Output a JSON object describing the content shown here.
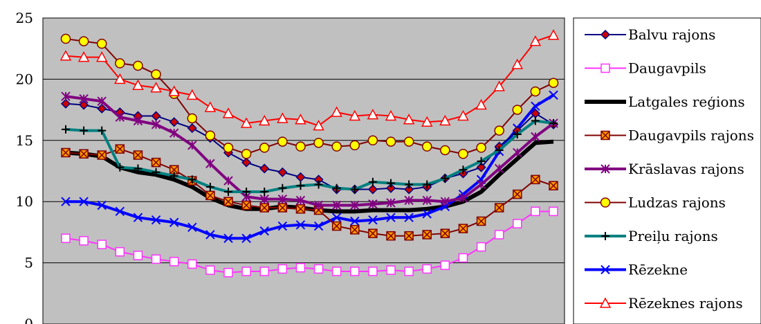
{
  "chart_data": {
    "type": "line",
    "title": "",
    "xlabel": "",
    "ylabel": "",
    "ylim": [
      0,
      25
    ],
    "yticks": [
      0,
      5,
      10,
      15,
      20,
      25
    ],
    "grid": true,
    "legend_position": "right",
    "x": [
      1,
      2,
      3,
      4,
      5,
      6,
      7,
      8,
      9,
      10,
      11,
      12,
      13,
      14,
      15,
      16,
      17,
      18,
      19,
      20,
      21,
      22,
      23,
      24,
      25,
      26,
      27,
      28
    ],
    "series": [
      {
        "name": "Balvu rajons",
        "color": "#000080",
        "marker": "diamond",
        "marker_fill": "#cc0000",
        "line_width": 2,
        "values": [
          18.0,
          17.9,
          17.6,
          17.3,
          17.0,
          17.0,
          16.5,
          16.0,
          15.2,
          14.0,
          13.2,
          12.7,
          12.4,
          12.0,
          11.8,
          11.0,
          11.0,
          11.0,
          11.1,
          11.0,
          11.2,
          11.9,
          12.3,
          12.8,
          14.5,
          15.8,
          17.2,
          16.3
        ]
      },
      {
        "name": "Daugavpils",
        "color": "#ff33ff",
        "marker": "square",
        "marker_fill": "#ffffff",
        "line_width": 2,
        "values": [
          7.0,
          6.8,
          6.5,
          5.9,
          5.6,
          5.3,
          5.1,
          4.9,
          4.4,
          4.2,
          4.3,
          4.3,
          4.5,
          4.6,
          4.5,
          4.3,
          4.3,
          4.3,
          4.4,
          4.3,
          4.5,
          4.8,
          5.4,
          6.3,
          7.3,
          8.2,
          9.2,
          9.2
        ]
      },
      {
        "name": "Latgales reģions",
        "color": "#000000",
        "marker": "none",
        "marker_fill": "",
        "line_width": 6,
        "values": [
          14.0,
          13.9,
          13.7,
          12.8,
          12.4,
          12.2,
          11.8,
          11.2,
          10.3,
          9.7,
          9.4,
          9.4,
          9.6,
          9.5,
          9.3,
          9.2,
          9.2,
          9.3,
          9.3,
          9.3,
          9.4,
          9.6,
          10.0,
          10.8,
          12.2,
          13.5,
          14.8,
          14.9
        ]
      },
      {
        "name": "Daugavpils rajons",
        "color": "#800000",
        "marker": "boxx",
        "marker_fill": "#ff9900",
        "line_width": 2,
        "values": [
          14.0,
          13.9,
          13.8,
          14.3,
          13.8,
          13.2,
          12.6,
          11.7,
          10.5,
          10.0,
          9.7,
          9.5,
          9.5,
          9.4,
          9.3,
          8.0,
          7.7,
          7.4,
          7.2,
          7.2,
          7.3,
          7.4,
          7.8,
          8.4,
          9.5,
          10.6,
          11.8,
          11.3
        ]
      },
      {
        "name": "Krāslavas rajons",
        "color": "#800080",
        "marker": "asterisk",
        "marker_fill": "",
        "line_width": 4,
        "values": [
          18.6,
          18.4,
          18.2,
          16.9,
          16.6,
          16.3,
          15.6,
          14.6,
          13.1,
          11.7,
          10.4,
          10.2,
          10.2,
          10.1,
          9.7,
          9.7,
          9.7,
          9.8,
          9.9,
          10.1,
          10.1,
          10.0,
          10.3,
          11.4,
          12.7,
          14.0,
          15.3,
          16.4
        ]
      },
      {
        "name": "Ludzas rajons",
        "color": "#800000",
        "marker": "circle",
        "marker_fill": "#ffff00",
        "line_width": 2,
        "values": [
          23.3,
          23.1,
          22.9,
          21.3,
          21.1,
          20.4,
          18.8,
          16.8,
          15.4,
          14.4,
          13.9,
          14.4,
          14.9,
          14.5,
          14.8,
          14.5,
          14.6,
          15.0,
          14.9,
          14.9,
          14.5,
          14.2,
          13.9,
          14.4,
          15.8,
          17.5,
          19.0,
          19.7
        ]
      },
      {
        "name": "Preiļu rajons",
        "color": "#008080",
        "marker": "plus",
        "marker_fill": "",
        "line_width": 4,
        "values": [
          15.9,
          15.8,
          15.8,
          12.8,
          12.7,
          12.4,
          12.1,
          11.8,
          11.2,
          10.8,
          10.8,
          10.8,
          11.1,
          11.3,
          11.4,
          11.1,
          11.0,
          11.6,
          11.5,
          11.4,
          11.4,
          11.9,
          12.6,
          13.3,
          14.2,
          15.5,
          16.6,
          16.4
        ]
      },
      {
        "name": "Rēzekne",
        "color": "#0000ff",
        "marker": "x",
        "marker_fill": "",
        "line_width": 4,
        "values": [
          10.0,
          10.0,
          9.7,
          9.2,
          8.7,
          8.5,
          8.3,
          7.9,
          7.3,
          7.0,
          7.0,
          7.6,
          8.0,
          8.1,
          8.0,
          8.7,
          8.4,
          8.5,
          8.7,
          8.7,
          9.0,
          9.6,
          10.6,
          11.8,
          14.1,
          16.0,
          17.8,
          18.7
        ]
      },
      {
        "name": "Rēzeknes rajons",
        "color": "#ff0000",
        "marker": "triangle",
        "marker_fill": "#ffffff",
        "line_width": 2,
        "values": [
          21.9,
          21.8,
          21.8,
          20.0,
          19.5,
          19.3,
          19.0,
          18.7,
          17.7,
          17.2,
          16.4,
          16.6,
          16.8,
          16.7,
          16.2,
          17.3,
          17.0,
          17.1,
          17.0,
          16.7,
          16.5,
          16.6,
          17.0,
          17.9,
          19.4,
          21.2,
          23.1,
          23.6
        ]
      }
    ]
  }
}
